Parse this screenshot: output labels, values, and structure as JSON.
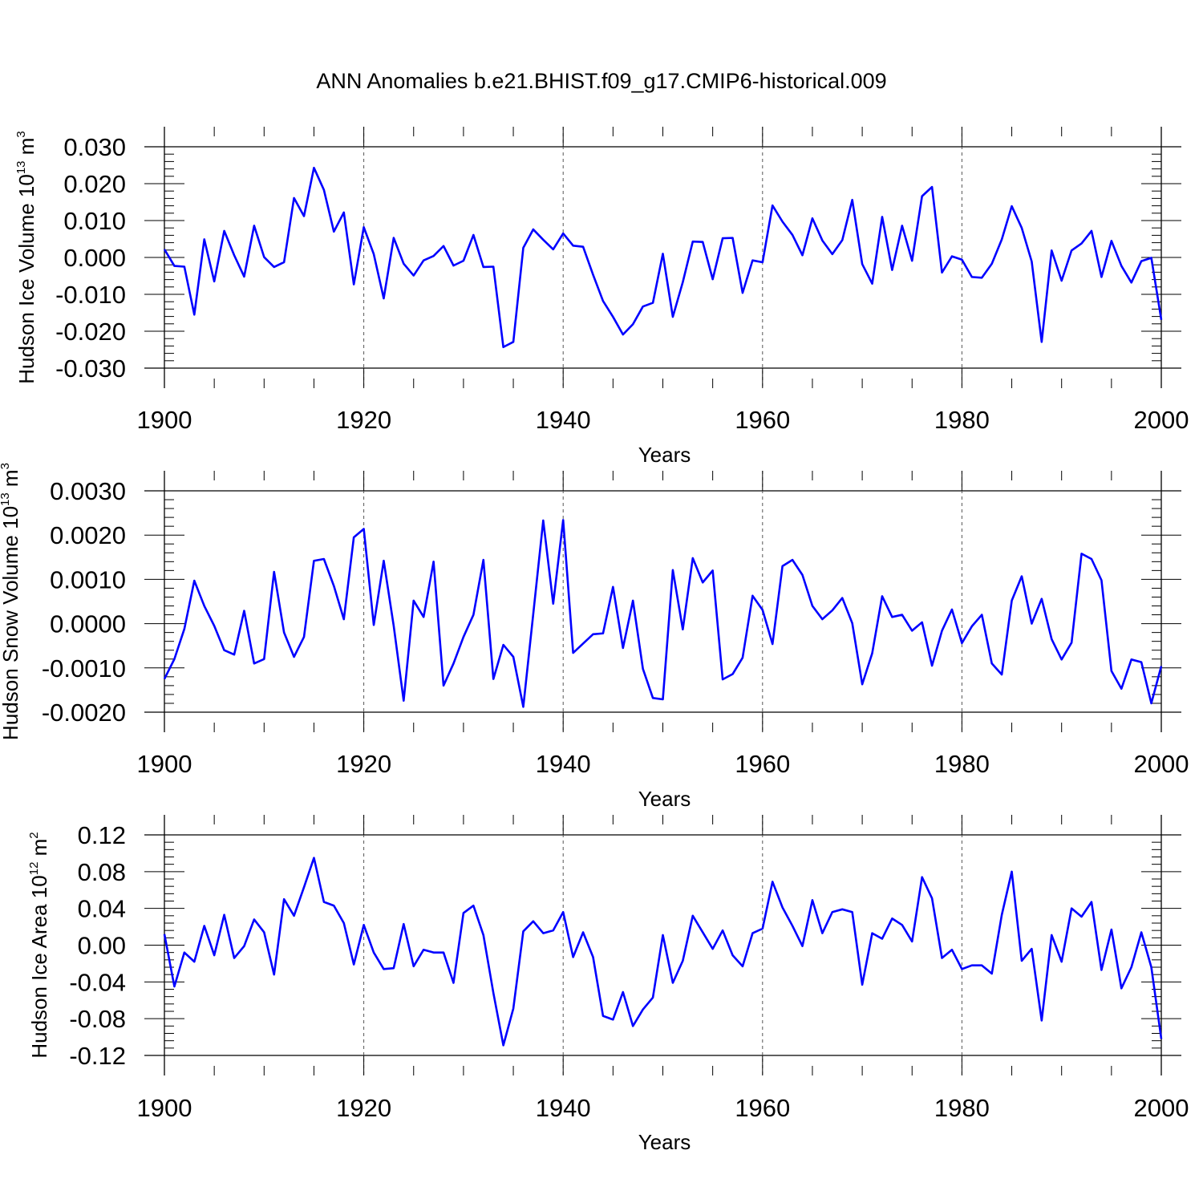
{
  "chart_data": [
    {
      "type": "line",
      "title": "ANN Anomalies b.e21.BHIST.f09_g17.CMIP6-historical.009",
      "xlabel": "Years",
      "ylabel": "Hudson Ice Volume 10",
      "ylabel_sup": "13",
      "ylabel_unit": " m",
      "ylabel_unit_sup": "3",
      "xlim": [
        1900,
        2000
      ],
      "ylim": [
        -0.03,
        0.03
      ],
      "xticks": [
        "1900",
        "1920",
        "1940",
        "1960",
        "1980",
        "2000"
      ],
      "yticks": [
        "-0.030",
        "-0.020",
        "-0.010",
        "0.000",
        "0.010",
        "0.020",
        "0.030"
      ],
      "line_color": "#0000ff",
      "series": [
        {
          "name": "Hudson Ice Volume",
          "x_start": 1900,
          "values": [
            0.0022,
            -0.0023,
            -0.0025,
            -0.0155,
            0.0049,
            -0.0065,
            0.0072,
            0.0006,
            -0.0052,
            0.0086,
            0.0001,
            -0.0026,
            -0.0013,
            0.0161,
            0.0112,
            0.0243,
            0.0183,
            0.007,
            0.0122,
            -0.0073,
            0.0082,
            0.0009,
            -0.0111,
            0.0053,
            -0.0017,
            -0.0049,
            -0.0008,
            0.0004,
            0.0031,
            -0.0022,
            -0.0009,
            0.0061,
            -0.0026,
            -0.0025,
            -0.0243,
            -0.0229,
            0.0026,
            0.0076,
            0.0048,
            0.0022,
            0.0065,
            0.0032,
            0.0029,
            -0.0047,
            -0.0118,
            -0.0161,
            -0.0209,
            -0.0181,
            -0.0133,
            -0.0123,
            0.001,
            -0.0161,
            -0.0067,
            0.0043,
            0.0042,
            -0.0059,
            0.0052,
            0.0053,
            -0.0096,
            -0.0008,
            -0.0013,
            0.0141,
            0.0097,
            0.0061,
            0.0006,
            0.0106,
            0.0046,
            0.0009,
            0.0047,
            0.0156,
            -0.0018,
            -0.0071,
            0.011,
            -0.0034,
            0.0086,
            -0.0009,
            0.0166,
            0.0191,
            -0.0041,
            0.0003,
            -0.0006,
            -0.0053,
            -0.0055,
            -0.0017,
            0.0049,
            0.0139,
            0.008,
            -0.0011,
            -0.0229,
            0.0019,
            -0.0063,
            0.0019,
            0.0038,
            0.0072,
            -0.0053,
            0.0045,
            -0.0023,
            -0.0068,
            -0.001,
            -0.0001,
            -0.0169
          ]
        }
      ]
    },
    {
      "type": "line",
      "xlabel": "Years",
      "ylabel": "Hudson Snow Volume 10",
      "ylabel_sup": "13",
      "ylabel_unit": " m",
      "ylabel_unit_sup": "3",
      "xlim": [
        1900,
        2000
      ],
      "ylim": [
        -0.002,
        0.003
      ],
      "xticks": [
        "1900",
        "1920",
        "1940",
        "1960",
        "1980",
        "2000"
      ],
      "yticks": [
        "-0.0020",
        "-0.0010",
        "0.0000",
        "0.0010",
        "0.0020",
        "0.0030"
      ],
      "line_color": "#0000ff",
      "series": [
        {
          "name": "Hudson Snow Volume",
          "x_start": 1900,
          "values": [
            -0.00125,
            -0.0008,
            -0.00012,
            0.00097,
            0.0004,
            -5e-05,
            -0.0006,
            -0.0007,
            0.00029,
            -0.0009,
            -0.0008,
            0.00117,
            -0.0002,
            -0.00075,
            -0.0003,
            0.00142,
            0.00146,
            0.00085,
            0.0001,
            0.00195,
            0.00214,
            -3e-05,
            0.00142,
            -5e-05,
            -0.00174,
            0.00052,
            0.00015,
            0.0014,
            -0.0014,
            -0.0009,
            -0.0003,
            0.0002,
            0.00144,
            -0.00125,
            -0.00048,
            -0.00075,
            -0.00188,
            0.00022,
            0.00233,
            0.00045,
            0.00234,
            -0.00066,
            -0.00045,
            -0.00024,
            -0.00022,
            0.00083,
            -0.00055,
            0.00052,
            -0.00102,
            -0.00168,
            -0.00171,
            0.00121,
            -0.00013,
            0.00148,
            0.00093,
            0.0012,
            -0.00126,
            -0.00114,
            -0.00077,
            0.00063,
            0.00031,
            -0.00046,
            0.0013,
            0.00144,
            0.0011,
            0.0004,
            0.0001,
            0.0003,
            0.00058,
            1e-05,
            -0.00137,
            -0.00067,
            0.00062,
            0.00015,
            0.0002,
            -0.00016,
            3e-05,
            -0.00095,
            -0.00016,
            0.00032,
            -0.00044,
            -6e-05,
            0.0002,
            -0.0009,
            -0.00115,
            0.00052,
            0.00107,
            0.0,
            0.00056,
            -0.00035,
            -0.00081,
            -0.00043,
            0.00158,
            0.00146,
            0.00098,
            -0.00107,
            -0.00147,
            -0.00081,
            -0.00087,
            -0.0018,
            -0.00096
          ]
        }
      ]
    },
    {
      "type": "line",
      "xlabel": "Years",
      "ylabel": "Hudson Ice Area 10",
      "ylabel_sup": "12",
      "ylabel_unit": " m",
      "ylabel_unit_sup": "2",
      "xlim": [
        1900,
        2000
      ],
      "ylim": [
        -0.12,
        0.12
      ],
      "xticks": [
        "1900",
        "1920",
        "1940",
        "1960",
        "1980",
        "2000"
      ],
      "yticks": [
        "-0.12",
        "-0.08",
        "-0.04",
        "0.00",
        "0.04",
        "0.08",
        "0.12"
      ],
      "line_color": "#0000ff",
      "series": [
        {
          "name": "Hudson Ice Area",
          "x_start": 1900,
          "values": [
            0.012,
            -0.045,
            -0.008,
            -0.018,
            0.021,
            -0.011,
            0.033,
            -0.014,
            -0.001,
            0.028,
            0.014,
            -0.032,
            0.05,
            0.032,
            0.063,
            0.095,
            0.047,
            0.043,
            0.024,
            -0.021,
            0.022,
            -0.008,
            -0.026,
            -0.025,
            0.023,
            -0.023,
            -0.005,
            -0.008,
            -0.008,
            -0.041,
            0.035,
            0.043,
            0.011,
            -0.052,
            -0.109,
            -0.069,
            0.015,
            0.026,
            0.013,
            0.016,
            0.036,
            -0.013,
            0.014,
            -0.013,
            -0.077,
            -0.081,
            -0.051,
            -0.088,
            -0.07,
            -0.057,
            0.011,
            -0.041,
            -0.017,
            0.032,
            0.014,
            -0.004,
            0.016,
            -0.011,
            -0.023,
            0.013,
            0.018,
            0.069,
            0.041,
            0.021,
            -0.001,
            0.049,
            0.013,
            0.036,
            0.039,
            0.036,
            -0.043,
            0.013,
            0.007,
            0.029,
            0.022,
            0.004,
            0.074,
            0.051,
            -0.014,
            -0.005,
            -0.026,
            -0.022,
            -0.022,
            -0.031,
            0.033,
            0.08,
            -0.017,
            -0.004,
            -0.082,
            0.011,
            -0.018,
            0.04,
            0.031,
            0.047,
            -0.027,
            0.017,
            -0.047,
            -0.024,
            0.014,
            -0.024,
            -0.102
          ]
        }
      ]
    }
  ]
}
